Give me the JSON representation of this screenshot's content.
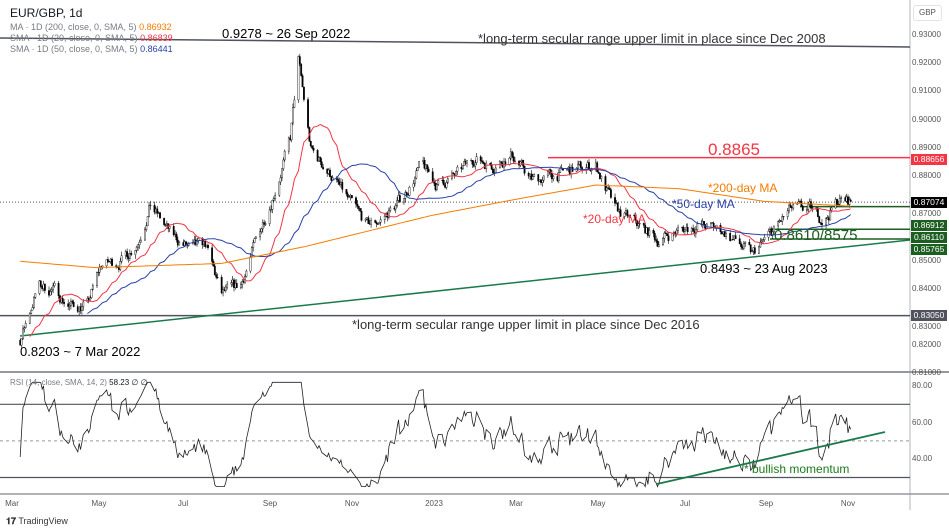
{
  "header": {
    "title": "EUR/GBP, 1d",
    "ma200": "MA · 1D (200, close, 0, SMA, 5)",
    "ma200_val": "0.86932",
    "ma20": "SMA · 1D (20, close, 0, SMA, 5)",
    "ma20_val": "0.86839",
    "ma50": "SMA · 1D (50, close, 0, SMA, 5)",
    "ma50_val": "0.86441",
    "rsi": "RSI (14, close, SMA, 14, 2)",
    "rsi_val": "58.23 ∅ ∅",
    "currency": "GBP"
  },
  "colors": {
    "ma200": "#f57c00",
    "ma20": "#f23645",
    "ma50": "#2941a8",
    "candle": "#000000",
    "support": "#1b5e20",
    "resistance": "#f23645",
    "trend": "#1b7a4a"
  },
  "annotations": {
    "high": "0.9278 ~ 26 Sep 2022",
    "upper": "*long-term secular range upper limit in place since Dec 2008",
    "low": "0.8203 ~ 7 Mar 2022",
    "lower": "*long-term secular range upper limit in place since Dec 2016",
    "res": "0.8865",
    "ma200": "*200-day MA",
    "ma50": "*50-day MA",
    "ma20": "*20-day MA",
    "sup": "0.8610/8575",
    "aug": "0.8493 ~ 23 Aug 2023",
    "rsi": "* bullish momentum"
  },
  "tags": [
    {
      "v": "0.88656",
      "c": "#f23645"
    },
    {
      "v": "0.87074",
      "c": "#000000"
    },
    {
      "v": "0.86912",
      "c": "#1b5e20"
    },
    {
      "v": "0.86110",
      "c": "#1b5e20"
    },
    {
      "v": "0.85765",
      "c": "#1b5e20"
    },
    {
      "v": "0.83050",
      "c": "#50535e"
    }
  ],
  "footer": {
    "brand": "TradingView"
  },
  "chart_data": {
    "type": "candlestick",
    "symbol": "EUR/GBP",
    "interval": "1d",
    "yticks": [
      "0.93000",
      "0.92000",
      "0.91000",
      "0.90000",
      "0.89000",
      "0.88000",
      "0.87000",
      "0.85000",
      "0.84000",
      "0.83000",
      "0.82000",
      "0.81000"
    ],
    "rsi_ticks": [
      "80.00",
      "60.00",
      "40.00"
    ],
    "xticks": [
      "Mar",
      "May",
      "Jul",
      "Sep",
      "Nov",
      "2023",
      "Mar",
      "May",
      "Jul",
      "Sep",
      "Nov"
    ],
    "closes": [
      [
        "2022-03-07",
        0.8218
      ],
      [
        "2022-03-20",
        0.841
      ],
      [
        "2022-04-01",
        0.8395
      ],
      [
        "2022-04-12",
        0.834
      ],
      [
        "2022-04-25",
        0.834
      ],
      [
        "2022-05-05",
        0.8485
      ],
      [
        "2022-05-20",
        0.85
      ],
      [
        "2022-06-01",
        0.857
      ],
      [
        "2022-06-10",
        0.8697
      ],
      [
        "2022-06-25",
        0.859
      ],
      [
        "2022-07-10",
        0.8538
      ],
      [
        "2022-07-20",
        0.8555
      ],
      [
        "2022-08-01",
        0.8378
      ],
      [
        "2022-08-15",
        0.8413
      ],
      [
        "2022-08-25",
        0.8555
      ],
      [
        "2022-09-10",
        0.8768
      ],
      [
        "2022-09-20",
        0.8928
      ],
      [
        "2022-09-26",
        0.9211
      ],
      [
        "2022-10-05",
        0.8892
      ],
      [
        "2022-10-20",
        0.8803
      ],
      [
        "2022-11-01",
        0.8715
      ],
      [
        "2022-11-15",
        0.8626
      ],
      [
        "2022-11-25",
        0.8644
      ],
      [
        "2022-12-10",
        0.8715
      ],
      [
        "2022-12-25",
        0.8839
      ],
      [
        "2023-01-05",
        0.8768
      ],
      [
        "2023-01-20",
        0.8803
      ],
      [
        "2023-02-01",
        0.8865
      ],
      [
        "2023-02-15",
        0.8839
      ],
      [
        "2023-03-01",
        0.8874
      ],
      [
        "2023-03-15",
        0.8786
      ],
      [
        "2023-04-01",
        0.8803
      ],
      [
        "2023-04-15",
        0.8821
      ],
      [
        "2023-05-01",
        0.8839
      ],
      [
        "2023-05-15",
        0.8679
      ],
      [
        "2023-06-01",
        0.8626
      ],
      [
        "2023-06-15",
        0.8573
      ],
      [
        "2023-07-01",
        0.8608
      ],
      [
        "2023-07-15",
        0.8626
      ],
      [
        "2023-08-01",
        0.8608
      ],
      [
        "2023-08-23",
        0.852
      ],
      [
        "2023-09-05",
        0.8591
      ],
      [
        "2023-09-20",
        0.8679
      ],
      [
        "2023-10-05",
        0.8679
      ],
      [
        "2023-10-15",
        0.8644
      ],
      [
        "2023-10-25",
        0.8715
      ],
      [
        "2023-11-03",
        0.8707
      ]
    ],
    "ma200": [
      [
        "2022-03-01",
        0.85
      ],
      [
        "2022-05-01",
        0.8475
      ],
      [
        "2022-08-01",
        0.849
      ],
      [
        "2022-10-01",
        0.855
      ],
      [
        "2023-01-01",
        0.866
      ],
      [
        "2023-03-01",
        0.8715
      ],
      [
        "2023-05-01",
        0.8768
      ],
      [
        "2023-07-01",
        0.8755
      ],
      [
        "2023-09-01",
        0.871
      ],
      [
        "2023-11-03",
        0.8693
      ]
    ],
    "levels": {
      "resistance": 0.8865,
      "last": 0.87074,
      "ma": 0.86912,
      "support": [
        0.8611,
        0.85765
      ],
      "secular_low": 0.8305
    },
    "rsi_levels": [
      70,
      50,
      30
    ]
  }
}
